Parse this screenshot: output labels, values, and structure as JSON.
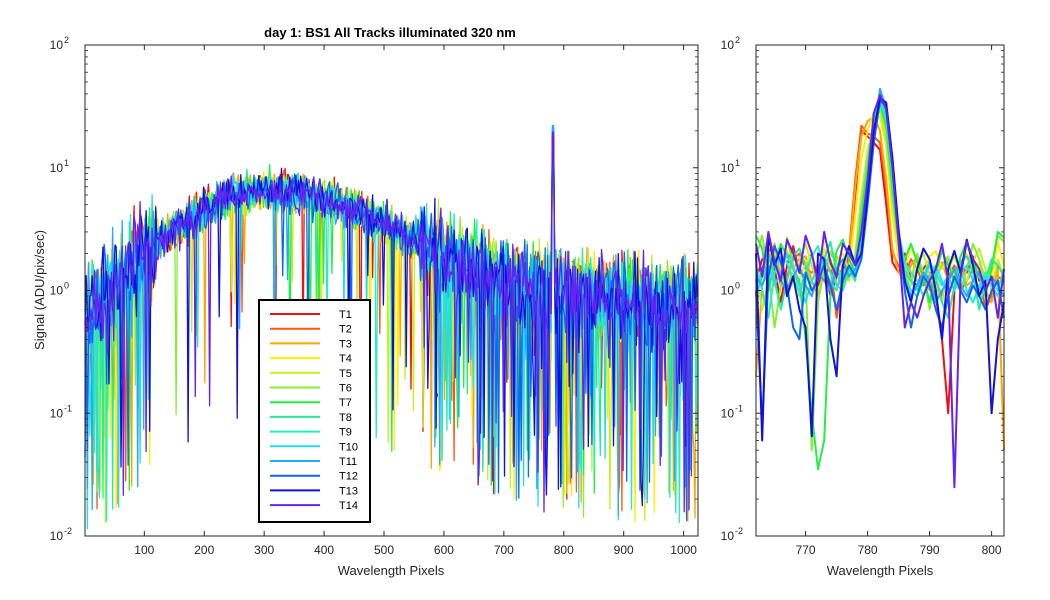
{
  "chart_data": [
    {
      "type": "line",
      "title": "day 1: BS1   All Tracks illuminated   320 nm",
      "xlabel": "Wavelength Pixels",
      "ylabel": "Signal (ADU/pix/sec)",
      "xlim": [
        1,
        1024
      ],
      "ylim": [
        0.01,
        100
      ],
      "yscale": "log",
      "xticks": [
        100,
        200,
        300,
        400,
        500,
        600,
        700,
        800,
        900,
        1000
      ],
      "yticks": [
        {
          "base": "10",
          "exp": "-2",
          "value": 0.01
        },
        {
          "base": "10",
          "exp": "-1",
          "value": 0.1
        },
        {
          "base": "10",
          "exp": "0",
          "value": 1
        },
        {
          "base": "10",
          "exp": "1",
          "value": 10
        },
        {
          "base": "10",
          "exp": "2",
          "value": 100
        }
      ],
      "legend_position": "bottom-center",
      "envelope": {
        "x": [
          1,
          50,
          100,
          150,
          200,
          250,
          300,
          350,
          400,
          450,
          500,
          550,
          600,
          650,
          700,
          750,
          780,
          800,
          850,
          900,
          950,
          1000,
          1024
        ],
        "y": [
          0.6,
          1.0,
          1.9,
          3.2,
          4.6,
          5.9,
          6.6,
          6.4,
          5.6,
          4.6,
          3.5,
          2.6,
          1.9,
          1.5,
          1.2,
          1.0,
          1.0,
          1.0,
          0.9,
          0.85,
          0.8,
          0.8,
          0.8
        ]
      },
      "peak": {
        "x": 782,
        "values": [
          20,
          24,
          26,
          28,
          30,
          33,
          36,
          38,
          40,
          42,
          44,
          35,
          37,
          39
        ]
      },
      "series": [
        {
          "name": "T1",
          "color": "#ee1111"
        },
        {
          "name": "T2",
          "color": "#ff5511"
        },
        {
          "name": "T3",
          "color": "#ffa500"
        },
        {
          "name": "T4",
          "color": "#ffee00"
        },
        {
          "name": "T5",
          "color": "#c8ee22"
        },
        {
          "name": "T6",
          "color": "#88ee33"
        },
        {
          "name": "T7",
          "color": "#22ee44"
        },
        {
          "name": "T8",
          "color": "#22ee99"
        },
        {
          "name": "T9",
          "color": "#22eec8"
        },
        {
          "name": "T10",
          "color": "#22ddee"
        },
        {
          "name": "T11",
          "color": "#22aaff"
        },
        {
          "name": "T12",
          "color": "#1166ee"
        },
        {
          "name": "T13",
          "color": "#1111dd"
        },
        {
          "name": "T14",
          "color": "#6622ee"
        }
      ]
    },
    {
      "type": "line",
      "title": "",
      "xlabel": "Wavelength Pixels",
      "ylabel": "",
      "xlim": [
        762,
        802
      ],
      "ylim": [
        0.01,
        100
      ],
      "yscale": "log",
      "xticks": [
        770,
        780,
        790,
        800
      ],
      "yticks": [
        {
          "base": "10",
          "exp": "-2",
          "value": 0.01
        },
        {
          "base": "10",
          "exp": "-1",
          "value": 0.1
        },
        {
          "base": "10",
          "exp": "0",
          "value": 1
        },
        {
          "base": "10",
          "exp": "1",
          "value": 10
        },
        {
          "base": "10",
          "exp": "2",
          "value": 100
        }
      ],
      "x": [
        762,
        763,
        764,
        765,
        766,
        767,
        768,
        769,
        770,
        771,
        772,
        773,
        774,
        775,
        776,
        777,
        778,
        779,
        780,
        781,
        782,
        783,
        784,
        785,
        786,
        787,
        788,
        789,
        790,
        791,
        792,
        793,
        794,
        795,
        796,
        797,
        798,
        799,
        800,
        801,
        802
      ],
      "series_values": [
        [
          1.2,
          1.8,
          2.0,
          1.5,
          0.8,
          1.6,
          2.3,
          1.4,
          1.3,
          2.0,
          1.1,
          1.6,
          0.9,
          1.3,
          1.5,
          1.8,
          6.0,
          20.0,
          18.0,
          16.0,
          14.0,
          5.0,
          1.7,
          1.4,
          2.0,
          1.2,
          1.1,
          1.5,
          1.8,
          0.9,
          0.4,
          0.1,
          1.0,
          1.6,
          1.4,
          1.9,
          1.2,
          1.3,
          1.1,
          1.6,
          1.4
        ],
        [
          0.9,
          1.5,
          2.2,
          1.9,
          1.1,
          1.3,
          1.8,
          2.0,
          1.5,
          1.4,
          1.6,
          1.2,
          1.7,
          0.6,
          1.2,
          2.0,
          8.0,
          22.0,
          19.0,
          18.0,
          16.0,
          7.0,
          2.0,
          1.6,
          1.3,
          1.8,
          1.5,
          1.1,
          1.4,
          1.2,
          0.9,
          1.3,
          1.6,
          1.0,
          1.2,
          1.5,
          1.4,
          0.7,
          0.9,
          1.3,
          1.2
        ],
        [
          0.2,
          1.1,
          1.7,
          2.4,
          1.3,
          1.0,
          1.5,
          1.8,
          1.9,
          1.2,
          0.9,
          1.5,
          1.8,
          1.1,
          1.0,
          1.7,
          7.0,
          18.0,
          24.0,
          26.0,
          20.0,
          8.0,
          2.2,
          1.4,
          1.2,
          1.6,
          1.9,
          1.3,
          1.0,
          1.5,
          1.7,
          1.2,
          1.4,
          1.8,
          1.1,
          1.2,
          1.3,
          1.0,
          0.8,
          1.5,
          0.05
        ],
        [
          1.5,
          1.2,
          2.6,
          1.8,
          1.6,
          2.1,
          1.4,
          1.2,
          1.7,
          1.9,
          1.3,
          2.2,
          1.5,
          1.8,
          2.0,
          1.4,
          4.0,
          12.0,
          20.0,
          28.0,
          26.0,
          15.0,
          4.0,
          1.8,
          1.5,
          2.3,
          1.7,
          1.2,
          1.9,
          2.1,
          1.5,
          1.8,
          1.2,
          1.6,
          2.0,
          1.4,
          1.7,
          1.1,
          1.3,
          2.5,
          1.6
        ],
        [
          1.4,
          0.7,
          1.2,
          2.0,
          1.5,
          0.9,
          1.2,
          1.7,
          2.4,
          1.6,
          1.0,
          1.3,
          2.1,
          1.9,
          1.5,
          1.2,
          2.0,
          6.0,
          14.0,
          22.0,
          30.0,
          16.0,
          5.0,
          2.2,
          1.4,
          1.1,
          1.6,
          2.0,
          1.3,
          1.1,
          0.8,
          1.5,
          1.9,
          1.4,
          1.2,
          1.7,
          2.2,
          1.5,
          1.0,
          1.8,
          1.3
        ],
        [
          1.9,
          2.8,
          1.4,
          0.5,
          1.1,
          2.7,
          1.6,
          0.9,
          1.3,
          0.05,
          0.8,
          1.5,
          2.0,
          1.7,
          1.1,
          1.3,
          1.8,
          5.0,
          12.0,
          24.0,
          32.0,
          20.0,
          6.0,
          2.4,
          1.6,
          1.2,
          2.0,
          1.4,
          0.7,
          1.3,
          1.6,
          1.9,
          1.1,
          1.0,
          1.5,
          2.4,
          1.8,
          1.2,
          1.6,
          2.8,
          2.5
        ],
        [
          2.8,
          2.2,
          1.0,
          1.7,
          2.4,
          1.9,
          1.5,
          1.2,
          0.4,
          0.1,
          0.035,
          0.06,
          0.9,
          2.1,
          2.6,
          1.8,
          1.4,
          4.0,
          10.0,
          26.0,
          34.0,
          22.0,
          7.0,
          2.5,
          1.8,
          2.4,
          1.7,
          1.3,
          0.8,
          1.4,
          2.1,
          1.6,
          1.2,
          1.9,
          2.5,
          1.7,
          1.3,
          0.9,
          1.5,
          3.0,
          2.7
        ],
        [
          1.1,
          1.4,
          2.1,
          1.2,
          0.7,
          1.2,
          1.9,
          2.2,
          1.6,
          1.0,
          1.2,
          1.8,
          2.5,
          1.4,
          1.0,
          1.5,
          1.2,
          3.0,
          9.0,
          24.0,
          36.0,
          24.0,
          8.0,
          2.7,
          1.3,
          1.0,
          0.9,
          1.2,
          1.6,
          1.3,
          0.8,
          0.6,
          1.1,
          1.7,
          1.9,
          1.4,
          0.7,
          1.2,
          1.8,
          1.6,
          1.3
        ],
        [
          1.6,
          1.0,
          0.6,
          1.4,
          1.9,
          1.7,
          1.2,
          1.0,
          1.4,
          1.9,
          2.3,
          1.5,
          1.2,
          1.0,
          1.6,
          2.2,
          1.7,
          2.5,
          8.0,
          22.0,
          38.0,
          26.0,
          9.0,
          3.0,
          1.7,
          1.4,
          1.2,
          0.9,
          1.3,
          1.6,
          1.2,
          0.9,
          1.3,
          1.5,
          1.0,
          0.8,
          1.1,
          1.4,
          1.2,
          1.0,
          1.5
        ],
        [
          0.9,
          1.3,
          1.6,
          1.1,
          1.4,
          2.0,
          1.5,
          1.1,
          0.8,
          1.2,
          1.5,
          1.9,
          1.4,
          1.1,
          1.3,
          1.6,
          1.4,
          2.2,
          7.0,
          20.0,
          40.0,
          28.0,
          10.0,
          3.0,
          1.4,
          1.2,
          1.0,
          1.3,
          1.7,
          1.4,
          1.1,
          1.3,
          1.0,
          1.4,
          1.6,
          1.2,
          1.0,
          1.3,
          1.1,
          0.9,
          1.2
        ],
        [
          1.3,
          1.1,
          1.5,
          1.8,
          1.2,
          1.0,
          1.3,
          1.6,
          1.1,
          0.9,
          1.4,
          1.2,
          1.0,
          1.5,
          1.8,
          1.3,
          1.5,
          2.0,
          6.0,
          18.0,
          44.0,
          30.0,
          11.0,
          3.0,
          1.2,
          0.9,
          1.1,
          1.4,
          1.2,
          0.8,
          1.0,
          1.2,
          1.5,
          1.1,
          0.9,
          1.2,
          1.4,
          1.0,
          1.3,
          1.1,
          0.9
        ],
        [
          1.0,
          0.08,
          1.3,
          2.3,
          1.7,
          1.1,
          0.5,
          0.4,
          1.4,
          1.0,
          1.2,
          1.6,
          1.1,
          0.7,
          1.2,
          1.6,
          1.3,
          1.8,
          5.0,
          16.0,
          35.0,
          32.0,
          12.0,
          3.2,
          1.0,
          0.5,
          0.9,
          1.3,
          1.1,
          0.7,
          0.5,
          0.9,
          1.3,
          1.0,
          0.8,
          1.1,
          0.9,
          0.7,
          1.0,
          1.2,
          0.6
        ],
        [
          2.0,
          0.06,
          2.8,
          1.6,
          2.2,
          0.9,
          1.3,
          0.7,
          0.5,
          0.065,
          2.0,
          1.8,
          0.4,
          0.2,
          1.6,
          2.3,
          1.6,
          2.0,
          6.0,
          20.0,
          37.0,
          34.0,
          12.0,
          3.0,
          1.2,
          0.8,
          1.5,
          2.2,
          1.8,
          1.0,
          0.4,
          1.5,
          2.1,
          1.4,
          2.6,
          1.6,
          0.9,
          1.2,
          0.1,
          0.4,
          0.8
        ],
        [
          2.4,
          1.3,
          3.0,
          1.7,
          1.2,
          2.6,
          2.0,
          1.4,
          2.8,
          2.0,
          1.2,
          3.0,
          1.7,
          1.3,
          2.4,
          2.0,
          1.6,
          3.0,
          8.0,
          28.0,
          39.0,
          30.0,
          10.0,
          2.5,
          0.5,
          0.8,
          0.6,
          0.9,
          1.2,
          1.5,
          2.4,
          1.2,
          0.025,
          1.3,
          2.5,
          1.8,
          1.5,
          1.0,
          1.3,
          0.6,
          1.5
        ]
      ]
    }
  ]
}
